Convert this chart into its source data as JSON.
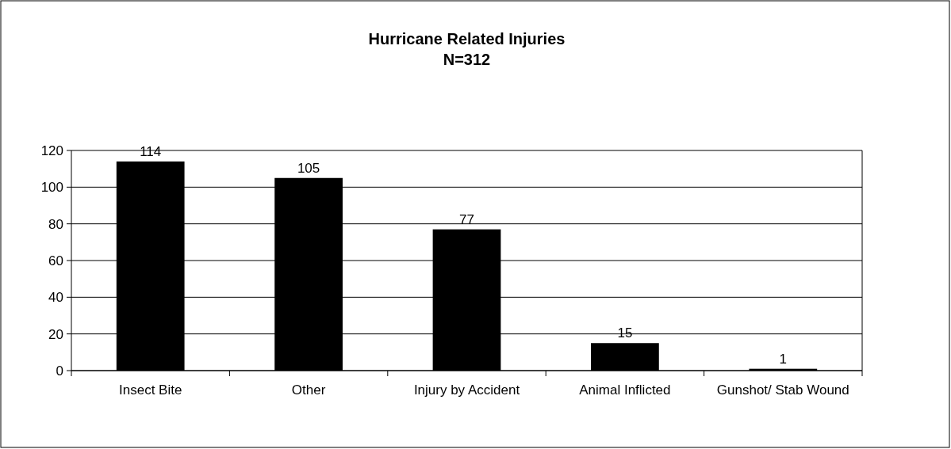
{
  "chart_data": {
    "type": "bar",
    "title": "Hurricane Related Injuries",
    "subtitle": "N=312",
    "categories": [
      "Insect Bite",
      "Other",
      "Injury by Accident",
      "Animal Inflicted",
      "Gunshot/ Stab Wound"
    ],
    "values": [
      114,
      105,
      77,
      15,
      1
    ],
    "color": "#000000",
    "ylim": [
      0,
      120
    ],
    "yticks": [
      0,
      20,
      40,
      60,
      80,
      100,
      120
    ],
    "grid": "y",
    "data_labels": true
  }
}
